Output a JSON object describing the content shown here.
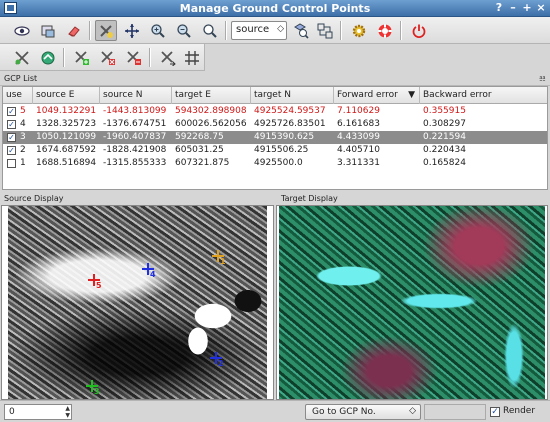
{
  "window": {
    "title": "Manage Ground Control Points",
    "controls": [
      "?",
      "–",
      "+",
      "×"
    ]
  },
  "toolbar": {
    "projection_combo": "source"
  },
  "gcp_list": {
    "title": "GCP List",
    "columns": [
      "use",
      "source E",
      "source N",
      "target E",
      "target N",
      "Forward error",
      "Backward error"
    ],
    "sort_indicator": "▼",
    "rows": [
      {
        "use": true,
        "id": "5",
        "source_e": "1049.132291",
        "source_n": "-1443.813099",
        "target_e": "594302.898908",
        "target_n": "4925524.59537",
        "fwd": "7.110629",
        "bwd": "0.355915",
        "highlight": "red"
      },
      {
        "use": true,
        "id": "4",
        "source_e": "1328.325723",
        "source_n": "-1376.674751",
        "target_e": "600026.562056",
        "target_n": "4925726.83501",
        "fwd": "6.161683",
        "bwd": "0.308297",
        "highlight": "none"
      },
      {
        "use": true,
        "id": "3",
        "source_e": "1050.121099",
        "source_n": "-1960.407837",
        "target_e": "592268.75",
        "target_n": "4915390.625",
        "fwd": "4.433099",
        "bwd": "0.221594",
        "highlight": "selected"
      },
      {
        "use": true,
        "id": "2",
        "source_e": "1674.687592",
        "source_n": "-1828.421908",
        "target_e": "605031.25",
        "target_n": "4915506.25",
        "fwd": "4.405710",
        "bwd": "0.220434",
        "highlight": "none"
      },
      {
        "use": false,
        "id": "1",
        "source_e": "1688.516894",
        "source_n": "-1315.855333",
        "target_e": "607321.875",
        "target_n": "4925500.0",
        "fwd": "3.311331",
        "bwd": "0.165824",
        "highlight": "none"
      }
    ]
  },
  "source_display": {
    "title": "Source Display",
    "gcps": [
      {
        "label": "5",
        "color": "#e02020"
      },
      {
        "label": "4",
        "color": "#2030e0"
      },
      {
        "label": "1",
        "color": "#e0a020"
      },
      {
        "label": "2",
        "color": "#2030e0"
      },
      {
        "label": "3",
        "color": "#20c020"
      }
    ]
  },
  "target_display": {
    "title": "Target Display"
  },
  "statusbar": {
    "spin_value": "0",
    "goto_label": "Go to GCP No.",
    "render_label": "Render",
    "render_checked": true
  }
}
